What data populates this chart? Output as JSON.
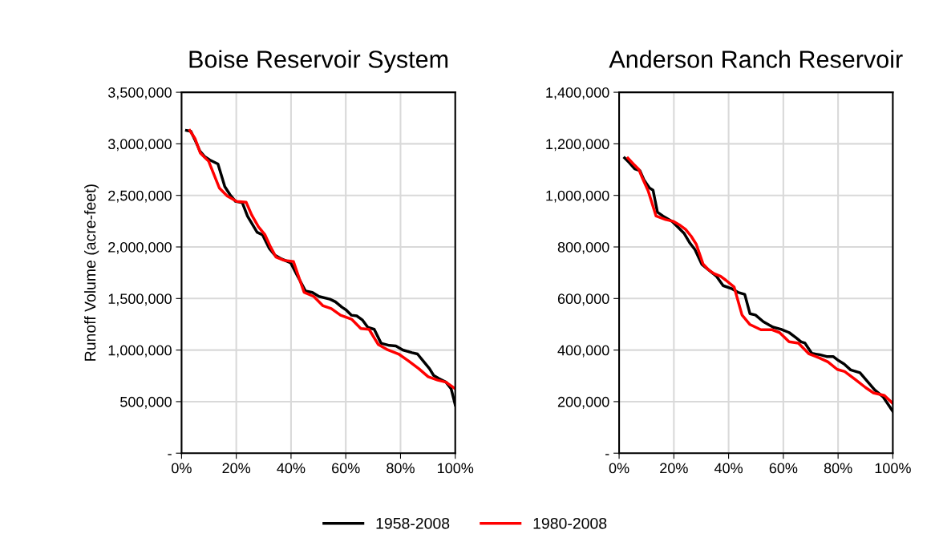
{
  "chart_data": [
    {
      "type": "line",
      "title": "Boise Reservoir System",
      "ylabel": "Runoff Volume (acre-feet)",
      "grid": true,
      "legend": "bottom",
      "xlim": [
        0,
        100
      ],
      "xticks": [
        {
          "value": 0,
          "label": "0%"
        },
        {
          "value": 20,
          "label": "20%"
        },
        {
          "value": 40,
          "label": "40%"
        },
        {
          "value": 60,
          "label": "60%"
        },
        {
          "value": 80,
          "label": "80%"
        },
        {
          "value": 100,
          "label": "100%"
        }
      ],
      "ylim": [
        0,
        3500000
      ],
      "yticks": [
        {
          "value": 0,
          "label": "-"
        },
        {
          "value": 500000,
          "label": "500,000"
        },
        {
          "value": 1000000,
          "label": "1,000,000"
        },
        {
          "value": 1500000,
          "label": "1,500,000"
        },
        {
          "value": 2000000,
          "label": "2,000,000"
        },
        {
          "value": 2500000,
          "label": "2,500,000"
        },
        {
          "value": 3000000,
          "label": "3,000,000"
        },
        {
          "value": 3500000,
          "label": "3,500,000"
        }
      ],
      "series": [
        {
          "name": "1958-2008",
          "color": "#000000",
          "x": [
            1.8,
            3.4,
            4.9,
            6.7,
            8.4,
            10.3,
            13.3,
            15.8,
            17.7,
            19.7,
            22.2,
            24.1,
            27.6,
            29.6,
            32.0,
            34.0,
            36.5,
            39.9,
            41.9,
            45.3,
            47.8,
            50.2,
            54.2,
            56.2,
            58.6,
            60.1,
            62.1,
            64.0,
            66.0,
            68.0,
            70.4,
            72.9,
            75.9,
            78.3,
            80.8,
            84.2,
            86.2,
            88.2,
            90.6,
            92.1,
            94.1,
            96.6,
            98.5,
            100
          ],
          "values": [
            3130000,
            3122000,
            3039000,
            2930000,
            2878000,
            2844000,
            2805000,
            2585000,
            2507000,
            2442000,
            2429000,
            2299000,
            2143000,
            2117000,
            1988000,
            1923000,
            1884000,
            1845000,
            1741000,
            1572000,
            1559000,
            1520000,
            1494000,
            1468000,
            1416000,
            1390000,
            1338000,
            1331000,
            1294000,
            1222000,
            1201000,
            1066000,
            1045000,
            1040000,
            1001000,
            975000,
            962000,
            897000,
            819000,
            754000,
            723000,
            689000,
            624000,
            468000
          ]
        },
        {
          "name": "1980-2008",
          "color": "#ff0000",
          "x": [
            3.0,
            4.9,
            6.9,
            9.9,
            13.8,
            16.7,
            20.2,
            23.6,
            25.6,
            28.1,
            30.5,
            32.5,
            34.5,
            37.4,
            40.9,
            42.4,
            44.8,
            48.3,
            51.7,
            54.7,
            58.1,
            62.1,
            65.5,
            68.5,
            71.9,
            75.4,
            79.3,
            82.8,
            86.7,
            90.1,
            93.6,
            96.6,
            100
          ],
          "values": [
            3130000,
            3052000,
            2909000,
            2831000,
            2572000,
            2494000,
            2442000,
            2434000,
            2312000,
            2195000,
            2117000,
            2001000,
            1902000,
            1871000,
            1858000,
            1741000,
            1559000,
            1520000,
            1429000,
            1403000,
            1338000,
            1300000,
            1209000,
            1201000,
            1053000,
            1001000,
            962000,
            897000,
            819000,
            741000,
            708000,
            689000,
            624000
          ]
        }
      ]
    },
    {
      "type": "line",
      "title": "Anderson Ranch Reservoir",
      "grid": true,
      "xlim": [
        0,
        100
      ],
      "xticks": [
        {
          "value": 0,
          "label": "0%"
        },
        {
          "value": 20,
          "label": "20%"
        },
        {
          "value": 40,
          "label": "40%"
        },
        {
          "value": 60,
          "label": "60%"
        },
        {
          "value": 80,
          "label": "80%"
        },
        {
          "value": 100,
          "label": "100%"
        }
      ],
      "ylim": [
        0,
        1400000
      ],
      "yticks": [
        {
          "value": 0,
          "label": "-"
        },
        {
          "value": 200000,
          "label": "200,000"
        },
        {
          "value": 400000,
          "label": "400,000"
        },
        {
          "value": 600000,
          "label": "600,000"
        },
        {
          "value": 800000,
          "label": "800,000"
        },
        {
          "value": 1000000,
          "label": "1,000,000"
        },
        {
          "value": 1200000,
          "label": "1,200,000"
        },
        {
          "value": 1400000,
          "label": "1,400,000"
        }
      ],
      "series": [
        {
          "name": "1958-2008",
          "color": "#000000",
          "x": [
            2.0,
            3.7,
            5.7,
            7.6,
            9.1,
            11.1,
            12.4,
            14.0,
            16.0,
            19.4,
            21.4,
            23.8,
            25.8,
            27.7,
            30.2,
            32.6,
            35.6,
            38.0,
            41.0,
            43.4,
            45.9,
            47.8,
            49.8,
            52.7,
            56.2,
            59.1,
            62.1,
            64.5,
            66.5,
            67.9,
            70.4,
            73.3,
            75.8,
            78.2,
            80.2,
            82.2,
            84.6,
            88.0,
            90.5,
            93.4,
            96.4,
            100
          ],
          "values": [
            1145000,
            1127000,
            1103000,
            1096000,
            1060000,
            1029000,
            1020000,
            935000,
            920000,
            899000,
            878000,
            852000,
            816000,
            790000,
            733000,
            712000,
            686000,
            650000,
            639000,
            624000,
            616000,
            541000,
            536000,
            510000,
            489000,
            481000,
            468000,
            449000,
            432000,
            427000,
            387000,
            382000,
            375000,
            375000,
            359000,
            346000,
            323000,
            312000,
            281000,
            245000,
            219000,
            162000
          ]
        },
        {
          "name": "1980-2008",
          "color": "#ff0000",
          "x": [
            3.2,
            5.2,
            7.2,
            8.6,
            10.6,
            13.5,
            17.0,
            19.9,
            22.4,
            24.3,
            26.3,
            28.2,
            30.7,
            32.6,
            34.6,
            37.1,
            39.0,
            42.0,
            44.9,
            47.8,
            51.8,
            55.7,
            58.6,
            62.1,
            65.5,
            69.4,
            73.3,
            76.3,
            79.7,
            82.4,
            86.3,
            90.0,
            92.9,
            96.9,
            100
          ],
          "values": [
            1145000,
            1122000,
            1101000,
            1065000,
            1018000,
            920000,
            906000,
            899000,
            883000,
            868000,
            842000,
            810000,
            733000,
            712000,
            697000,
            686000,
            671000,
            645000,
            536000,
            499000,
            479000,
            479000,
            468000,
            432000,
            427000,
            385000,
            369000,
            354000,
            325000,
            317000,
            286000,
            255000,
            234000,
            224000,
            193000
          ]
        }
      ]
    }
  ]
}
